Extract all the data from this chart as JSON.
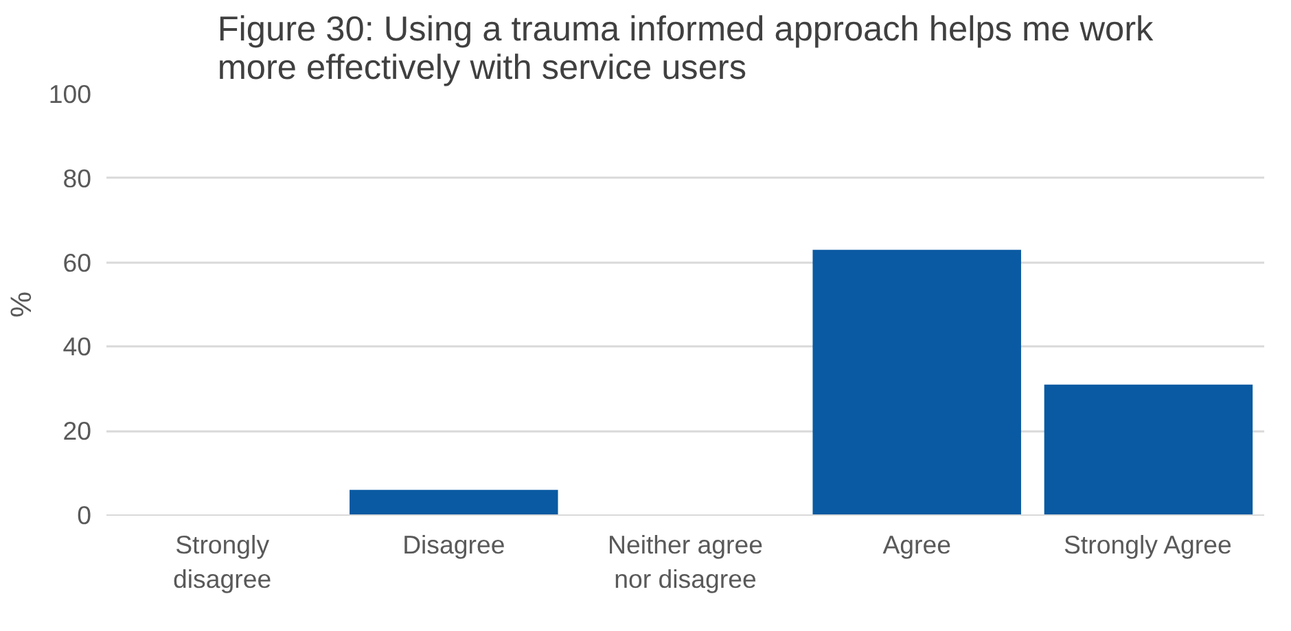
{
  "chart_data": {
    "type": "bar",
    "title": "Figure 30: Using a trauma informed approach helps me work more effectively with service users",
    "ylabel": "%",
    "categories": [
      "Strongly disagree",
      "Disagree",
      "Neither agree nor disagree",
      "Agree",
      "Strongly Agree"
    ],
    "values": [
      0,
      6,
      0,
      63,
      31
    ],
    "color": "#095aa2",
    "ylim": [
      0,
      100
    ],
    "yticks": [
      0,
      20,
      40,
      60,
      80,
      100
    ],
    "grid": "y"
  }
}
